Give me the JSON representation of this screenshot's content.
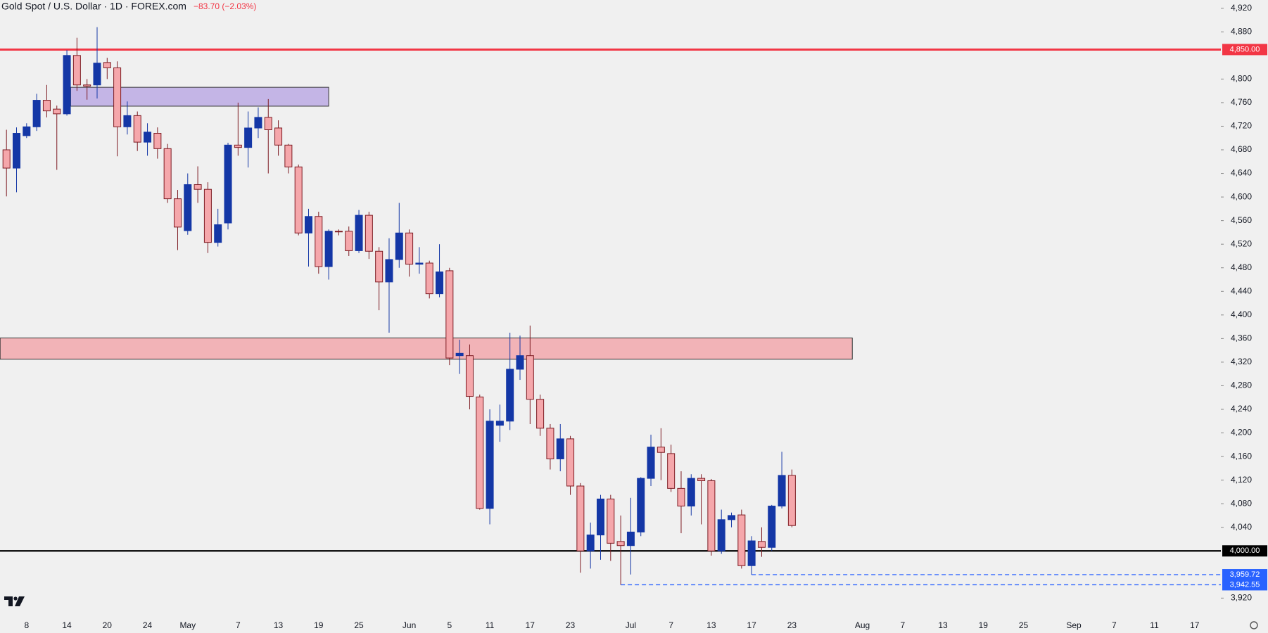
{
  "chart_data": {
    "type": "candlestick",
    "title": "Gold Spot / U.S. Dollar · 1D · FOREX.com",
    "change_label": "−83.70 (−2.03%)",
    "up_color": "#1437a6",
    "down_color": "#f5a7ab",
    "down_border": "#7d1b22",
    "categories": [
      null,
      null,
      "8",
      null,
      null,
      null,
      "14",
      null,
      null,
      null,
      "20",
      null,
      null,
      null,
      "24",
      null,
      null,
      null,
      "May",
      null,
      null,
      null,
      null,
      "7",
      null,
      null,
      null,
      "13",
      null,
      null,
      null,
      "19",
      null,
      null,
      null,
      "25",
      null,
      null,
      null,
      null,
      "Jun",
      null,
      null,
      null,
      "5",
      null,
      null,
      null,
      "11",
      null,
      null,
      null,
      "17",
      null,
      null,
      null,
      "23",
      null,
      null,
      null,
      null,
      null,
      "Jul",
      null,
      null,
      null,
      "7",
      null,
      null,
      null,
      "13",
      null,
      null,
      null,
      "17",
      null,
      null,
      null,
      "23",
      null,
      null,
      null,
      null,
      null,
      null,
      "Aug",
      null,
      null,
      null,
      "7",
      null,
      null,
      null,
      "13",
      null,
      null,
      null,
      "19",
      null,
      null,
      null,
      "25",
      null,
      null,
      null,
      null,
      "Sep",
      null,
      null,
      null,
      "7",
      null,
      null,
      null,
      "11",
      null,
      null,
      null,
      "17",
      null,
      null
    ],
    "open": [
      4680,
      4649,
      4704,
      4719,
      4764,
      4749,
      4741,
      4840,
      4790,
      4790,
      4828,
      4819,
      4719,
      4738,
      4693,
      4708,
      4682,
      4597,
      4543,
      4621,
      4613,
      4523,
      4556,
      4688,
      4684,
      4717,
      4735,
      4717,
      4688,
      4651,
      4539,
      4567,
      4482,
      4542,
      4542,
      4509,
      4569,
      4508,
      4456,
      4494,
      4539,
      4486,
      4488,
      4436,
      4475,
      4331,
      4331,
      4261,
      4072,
      4213,
      4220,
      4308,
      4331,
      4257,
      4208,
      4156,
      4190,
      4110,
      4000,
      4027,
      4088,
      4016,
      4009,
      4032,
      4123,
      4176,
      4165,
      4106,
      4076,
      4123,
      4119,
      4000,
      4053,
      4061,
      3975,
      4016,
      4006,
      4076,
      4128,
      null,
      null,
      null,
      null,
      null,
      null,
      null,
      null,
      null,
      null,
      null,
      null,
      null,
      null,
      null,
      null,
      null,
      null,
      null,
      null,
      null,
      null,
      null,
      null,
      null,
      null,
      null,
      null,
      null,
      null,
      null,
      null,
      null,
      null,
      null,
      null,
      null,
      null,
      null,
      null,
      null,
      null
    ],
    "high": [
      4714,
      4718,
      4725,
      4775,
      4790,
      4755,
      4849,
      4870,
      4800,
      4888,
      4836,
      4830,
      4762,
      4745,
      4725,
      4718,
      4690,
      4612,
      4640,
      4652,
      4625,
      4580,
      4692,
      4760,
      4745,
      4752,
      4766,
      4730,
      4690,
      4655,
      4580,
      4575,
      4545,
      4545,
      4550,
      4578,
      4575,
      4515,
      4530,
      4590,
      4545,
      4515,
      4492,
      4520,
      4480,
      4358,
      4350,
      4265,
      4240,
      4248,
      4370,
      4365,
      4382,
      4265,
      4215,
      4215,
      4195,
      4115,
      4048,
      4095,
      4095,
      4060,
      4090,
      4125,
      4197,
      4208,
      4180,
      4135,
      4130,
      4130,
      4122,
      4070,
      4065,
      4070,
      4025,
      4040,
      4078,
      4168,
      4138,
      null,
      null,
      null,
      null,
      null,
      null,
      null,
      null,
      null,
      null,
      null,
      null,
      null,
      null,
      null,
      null,
      null,
      null,
      null,
      null,
      null,
      null,
      null,
      null,
      null,
      null,
      null,
      null,
      null,
      null,
      null,
      null,
      null,
      null,
      null,
      null,
      null,
      null,
      null,
      null,
      null,
      null
    ],
    "low": [
      4601,
      4608,
      4700,
      4712,
      4735,
      4646,
      4738,
      4780,
      4765,
      4767,
      4800,
      4669,
      4706,
      4678,
      4670,
      4665,
      4590,
      4510,
      4536,
      4590,
      4505,
      4516,
      4545,
      4670,
      4650,
      4700,
      4640,
      4670,
      4640,
      4535,
      4482,
      4470,
      4460,
      4535,
      4500,
      4505,
      4495,
      4408,
      4370,
      4480,
      4465,
      4470,
      4428,
      4430,
      4315,
      4300,
      4240,
      4070,
      4045,
      4185,
      4205,
      4290,
      4215,
      4195,
      4138,
      4135,
      4095,
      3963,
      3970,
      3985,
      3983,
      3942.55,
      3960,
      4025,
      4110,
      4120,
      4100,
      4030,
      4060,
      4045,
      3992,
      3995,
      4040,
      3970,
      3959.72,
      3990,
      4000,
      4072,
      4040,
      null,
      null,
      null,
      null,
      null,
      null,
      null,
      null,
      null,
      null,
      null,
      null,
      null,
      null,
      null,
      null,
      null,
      null,
      null,
      null,
      null,
      null,
      null,
      null,
      null,
      null,
      null,
      null,
      null,
      null,
      null,
      null,
      null,
      null,
      null,
      null,
      null,
      null,
      null,
      null,
      null,
      null
    ],
    "close": [
      4649,
      4708,
      4719,
      4764,
      4746,
      4741,
      4840,
      4790,
      4788,
      4827,
      4819,
      4719,
      4738,
      4693,
      4710,
      4682,
      4597,
      4549,
      4621,
      4613,
      4523,
      4553,
      4688,
      4684,
      4717,
      4735,
      4714,
      4688,
      4651,
      4539,
      4567,
      4482,
      4542,
      4541,
      4509,
      4569,
      4508,
      4456,
      4494,
      4539,
      4486,
      4488,
      4436,
      4473,
      4327,
      4335,
      4262,
      4072,
      4220,
      4220,
      4308,
      4331,
      4257,
      4208,
      4156,
      4190,
      4110,
      4000,
      4027,
      4088,
      4013,
      4009,
      4032,
      4123,
      4176,
      4167,
      4106,
      4076,
      4123,
      4119,
      4000,
      4053,
      4060,
      3975,
      4017,
      4006,
      4076,
      4128,
      4043,
      null,
      null,
      null,
      null,
      null,
      null,
      null,
      null,
      null,
      null,
      null,
      null,
      null,
      null,
      null,
      null,
      null,
      null,
      null,
      null,
      null,
      null,
      null,
      null,
      null,
      null,
      null,
      null,
      null,
      null,
      null,
      null,
      null,
      null,
      null,
      null,
      null,
      null,
      null,
      null,
      null,
      null
    ],
    "ylim": [
      3893,
      4934
    ],
    "yticks": [
      {
        "value": 4920,
        "label": "4,920"
      },
      {
        "value": 4880,
        "label": "4,880"
      },
      {
        "value": 4800,
        "label": "4,800"
      },
      {
        "value": 4760,
        "label": "4,760"
      },
      {
        "value": 4720,
        "label": "4,720"
      },
      {
        "value": 4680,
        "label": "4,680"
      },
      {
        "value": 4640,
        "label": "4,640"
      },
      {
        "value": 4600,
        "label": "4,600"
      },
      {
        "value": 4560,
        "label": "4,560"
      },
      {
        "value": 4520,
        "label": "4,520"
      },
      {
        "value": 4480,
        "label": "4,480"
      },
      {
        "value": 4440,
        "label": "4,440"
      },
      {
        "value": 4400,
        "label": "4,400"
      },
      {
        "value": 4360,
        "label": "4,360"
      },
      {
        "value": 4320,
        "label": "4,320"
      },
      {
        "value": 4280,
        "label": "4,280"
      },
      {
        "value": 4240,
        "label": "4,240"
      },
      {
        "value": 4200,
        "label": "4,200"
      },
      {
        "value": 4160,
        "label": "4,160"
      },
      {
        "value": 4120,
        "label": "4,120"
      },
      {
        "value": 4080,
        "label": "4,080"
      },
      {
        "value": 4040,
        "label": "4,040"
      },
      {
        "value": 3920,
        "label": "3,920"
      }
    ],
    "zones": [
      {
        "low": 4754,
        "high": 4786,
        "start": 7,
        "end": 32,
        "color": "#c4b5e6",
        "border": "#333333"
      },
      {
        "low": 4325,
        "high": 4361,
        "start": 0,
        "end": 84,
        "color": "#f2b3b7",
        "border": "#333333"
      }
    ],
    "levels": [
      {
        "value": 4850,
        "label": "4,850.00",
        "color": "#f23645",
        "style": "solid",
        "start": 0
      },
      {
        "value": 4000,
        "label": "4,000.00",
        "color": "#000000",
        "style": "solid",
        "start": 0
      },
      {
        "value": 3959.72,
        "label": "3,959.72",
        "color": "#2962ff",
        "style": "dashed",
        "start": 74
      },
      {
        "value": 3942.55,
        "label": "3,942.55",
        "color": "#2962ff",
        "style": "dashed",
        "start": 61
      }
    ]
  }
}
